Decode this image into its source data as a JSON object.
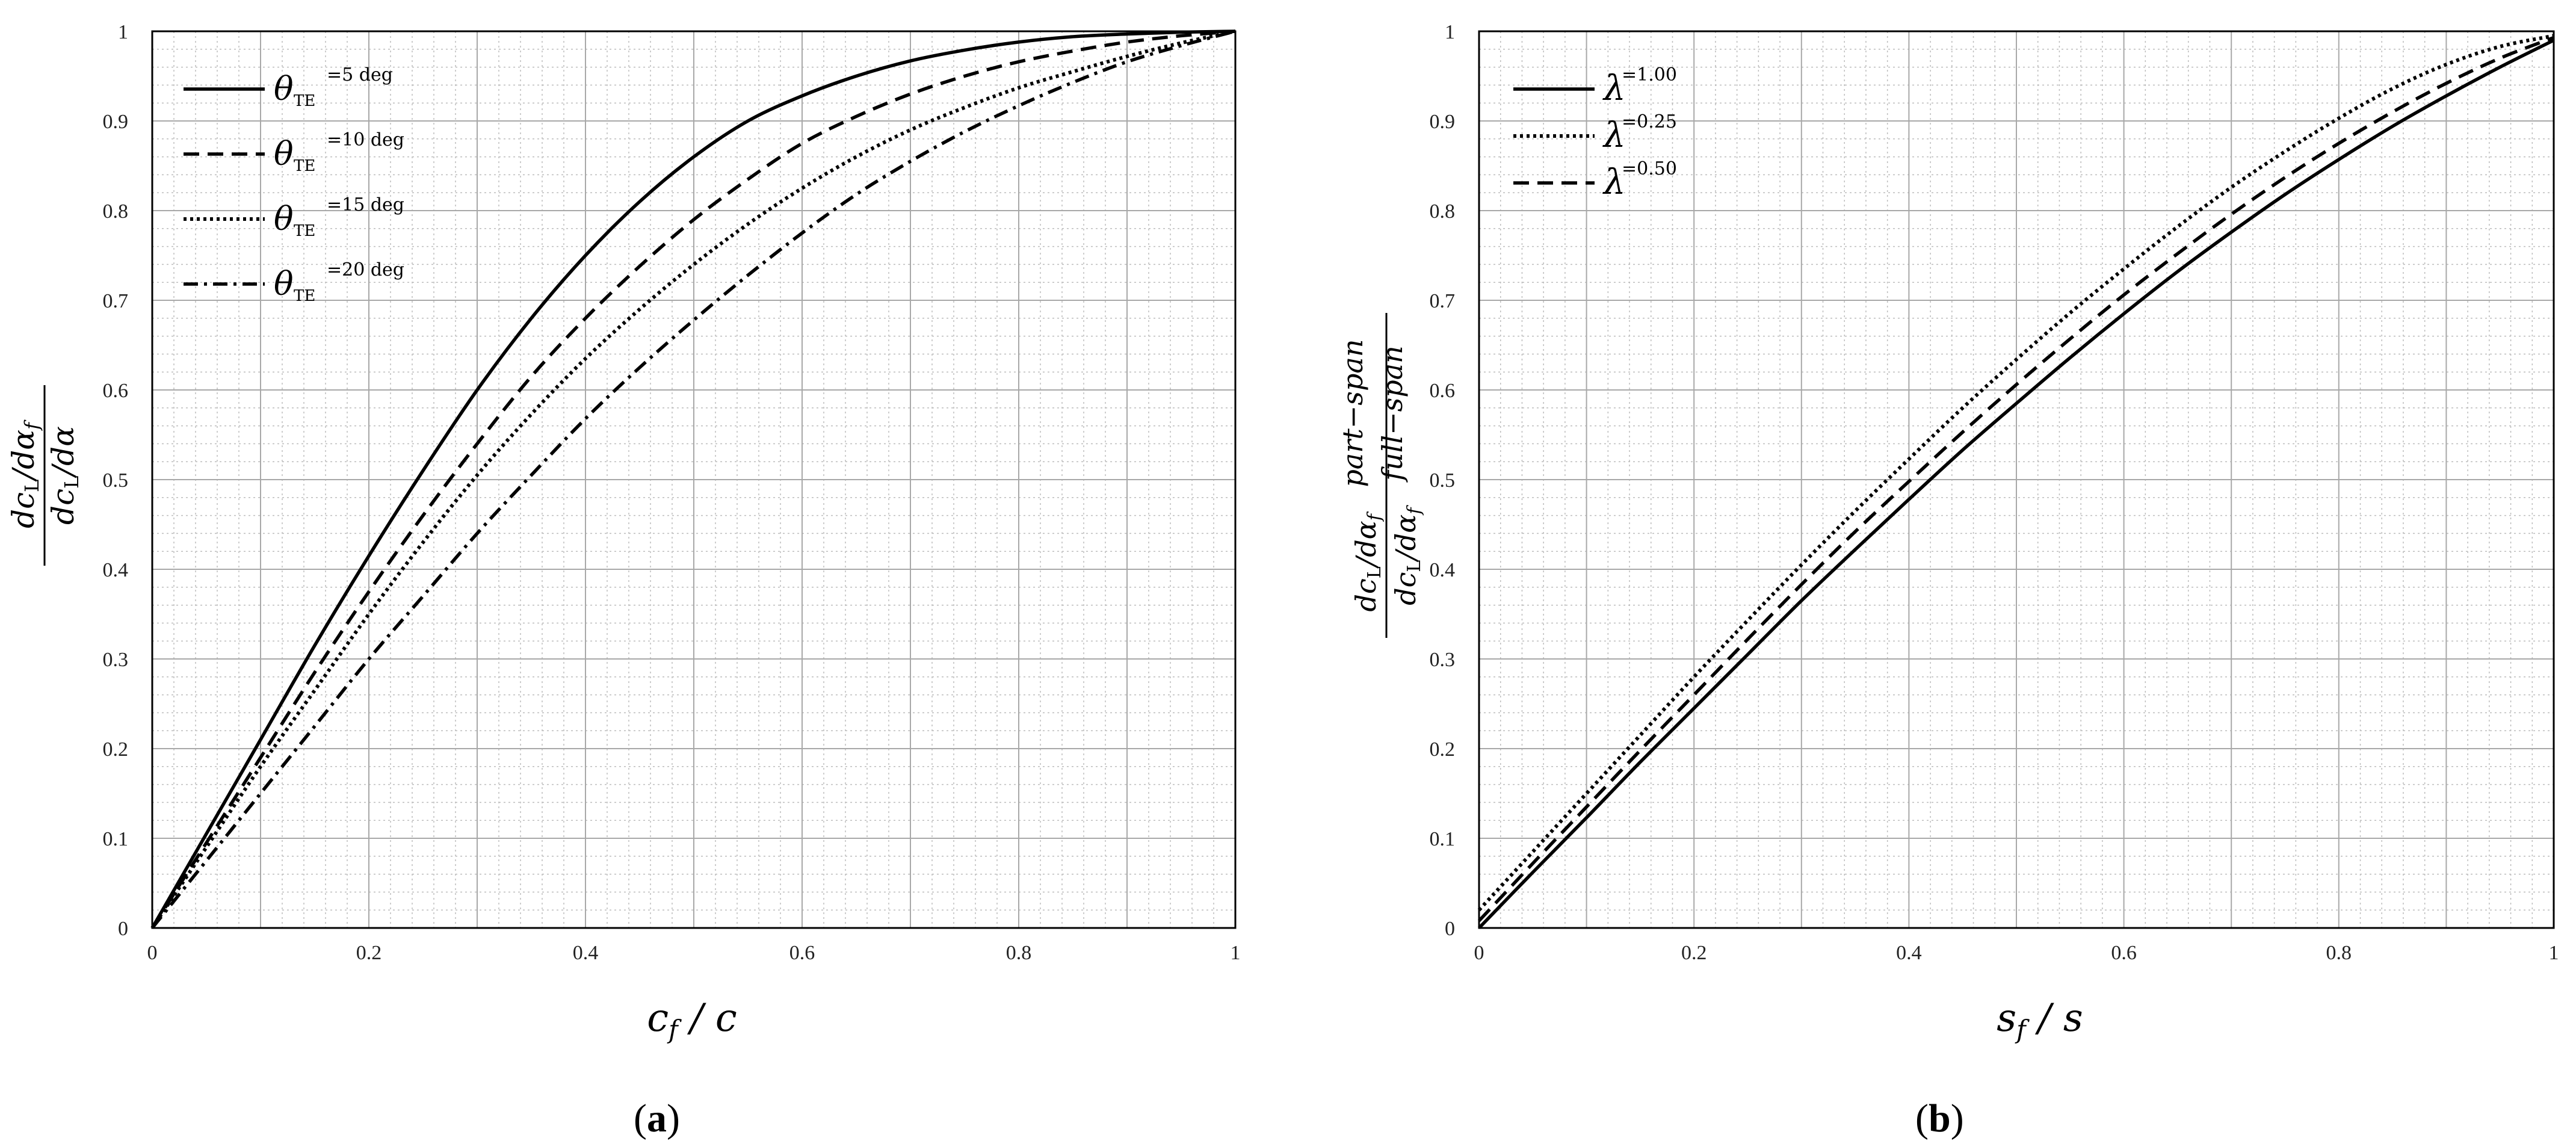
{
  "chart_data": [
    {
      "type": "line",
      "panel_label": "(a)",
      "xlabel": "c_f / c",
      "ylabel": "dc_L/dα_f / dc_L/dα",
      "xlim": [
        0,
        1
      ],
      "ylim": [
        0,
        1
      ],
      "x_ticks": [
        "0",
        "0.2",
        "0.4",
        "0.6",
        "0.8",
        "1"
      ],
      "y_ticks": [
        "0",
        "0.1",
        "0.2",
        "0.3",
        "0.4",
        "0.5",
        "0.6",
        "0.7",
        "0.8",
        "0.9",
        "1"
      ],
      "grid": true,
      "legend_position": "top-left",
      "legend_symbol": "θ",
      "legend_subscript": "TE",
      "x": [
        0,
        0.05,
        0.1,
        0.15,
        0.2,
        0.25,
        0.3,
        0.35,
        0.4,
        0.45,
        0.5,
        0.55,
        0.6,
        0.65,
        0.7,
        0.75,
        0.8,
        0.85,
        0.9,
        0.95,
        1.0
      ],
      "series": [
        {
          "name": "=5 deg",
          "dash": "solid",
          "values": [
            0,
            0.105,
            0.21,
            0.315,
            0.415,
            0.51,
            0.6,
            0.68,
            0.75,
            0.81,
            0.86,
            0.9,
            0.928,
            0.95,
            0.967,
            0.979,
            0.988,
            0.994,
            0.997,
            0.999,
            1.0
          ]
        },
        {
          "name": "=10 deg",
          "dash": "dash",
          "values": [
            0,
            0.095,
            0.19,
            0.285,
            0.375,
            0.46,
            0.54,
            0.615,
            0.68,
            0.738,
            0.79,
            0.835,
            0.875,
            0.905,
            0.93,
            0.95,
            0.966,
            0.978,
            0.988,
            0.995,
            1.0
          ]
        },
        {
          "name": "=15 deg",
          "dash": "dot",
          "values": [
            0,
            0.09,
            0.18,
            0.265,
            0.35,
            0.43,
            0.505,
            0.573,
            0.635,
            0.69,
            0.74,
            0.785,
            0.825,
            0.86,
            0.89,
            0.915,
            0.937,
            0.955,
            0.972,
            0.987,
            1.0
          ]
        },
        {
          "name": "=20 deg",
          "dash": "dashdot",
          "values": [
            0,
            0.075,
            0.15,
            0.225,
            0.3,
            0.37,
            0.44,
            0.505,
            0.568,
            0.625,
            0.678,
            0.728,
            0.775,
            0.818,
            0.855,
            0.888,
            0.917,
            0.943,
            0.966,
            0.984,
            1.0
          ]
        }
      ]
    },
    {
      "type": "line",
      "panel_label": "(b)",
      "xlabel": "s_f / s",
      "ylabel": "(dc_L/dα_f)_part−span / (dc_L/dα_f)_full−span",
      "xlim": [
        0,
        1
      ],
      "ylim": [
        0,
        1
      ],
      "x_ticks": [
        "0",
        "0.2",
        "0.4",
        "0.6",
        "0.8",
        "1"
      ],
      "y_ticks": [
        "0",
        "0.1",
        "0.2",
        "0.3",
        "0.4",
        "0.5",
        "0.6",
        "0.7",
        "0.8",
        "0.9",
        "1"
      ],
      "grid": true,
      "legend_position": "top-left",
      "legend_symbol": "λ",
      "x": [
        0,
        0.05,
        0.1,
        0.15,
        0.2,
        0.25,
        0.3,
        0.35,
        0.4,
        0.45,
        0.5,
        0.55,
        0.6,
        0.65,
        0.7,
        0.75,
        0.8,
        0.85,
        0.9,
        0.95,
        1.0
      ],
      "series": [
        {
          "name": "=1.00",
          "dash": "solid",
          "values": [
            0,
            0.062,
            0.123,
            0.185,
            0.245,
            0.305,
            0.365,
            0.422,
            0.478,
            0.533,
            0.585,
            0.636,
            0.685,
            0.732,
            0.776,
            0.818,
            0.857,
            0.894,
            0.928,
            0.96,
            0.99
          ]
        },
        {
          "name": "=0.25",
          "dash": "dot",
          "values": [
            0.02,
            0.085,
            0.15,
            0.215,
            0.28,
            0.343,
            0.405,
            0.465,
            0.523,
            0.58,
            0.634,
            0.686,
            0.735,
            0.782,
            0.826,
            0.866,
            0.903,
            0.936,
            0.963,
            0.983,
            0.995
          ]
        },
        {
          "name": "=0.50",
          "dash": "dash",
          "values": [
            0.008,
            0.072,
            0.135,
            0.198,
            0.26,
            0.322,
            0.383,
            0.442,
            0.498,
            0.553,
            0.606,
            0.657,
            0.706,
            0.752,
            0.796,
            0.837,
            0.875,
            0.91,
            0.942,
            0.97,
            0.993
          ]
        }
      ]
    }
  ]
}
